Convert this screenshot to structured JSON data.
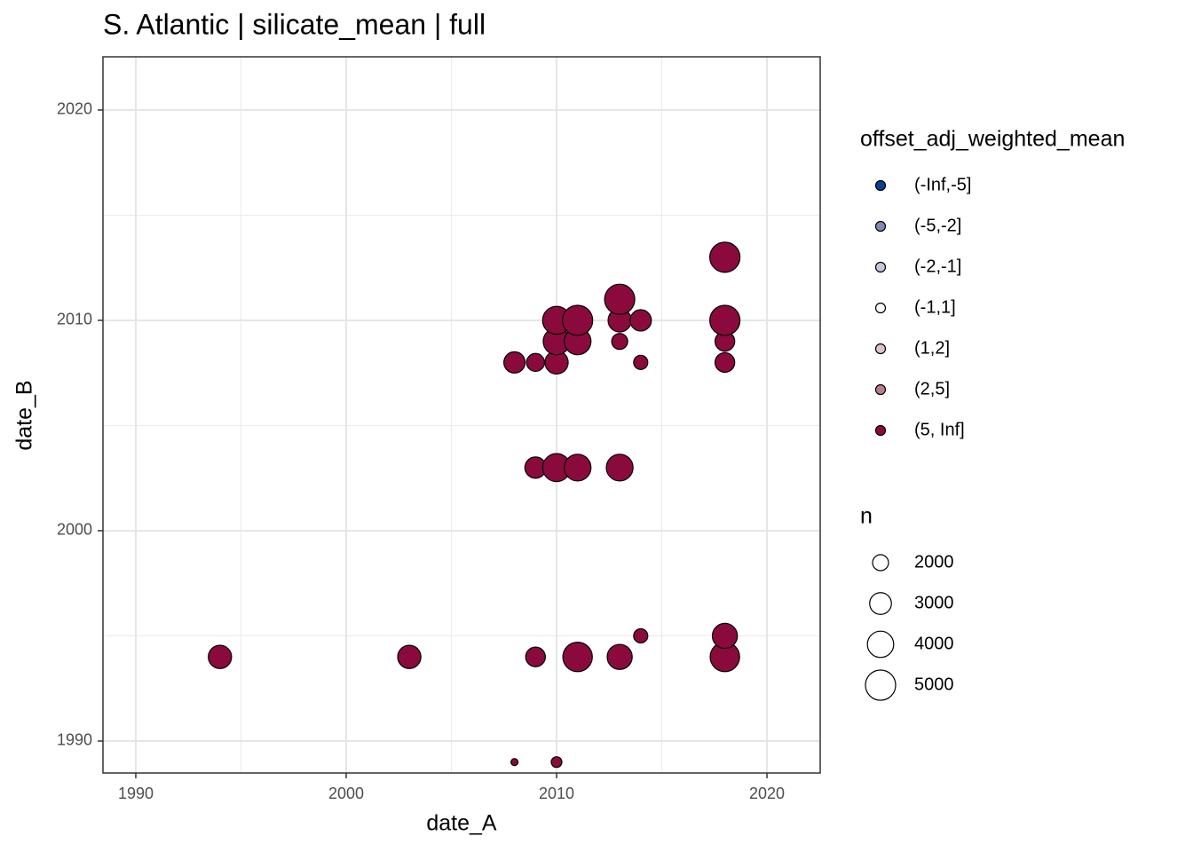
{
  "chart_data": {
    "type": "scatter",
    "title": "S. Atlantic | silicate_mean | full",
    "x_label": "date_A",
    "y_label": "date_B",
    "xlim": [
      1988.44,
      2022.53
    ],
    "ylim": [
      1988.48,
      2022.53
    ],
    "xticks": [
      1990,
      2000,
      2010,
      2020
    ],
    "yticks": [
      1990,
      2000,
      2010,
      2020
    ],
    "xminor": [
      1995,
      2005,
      2015
    ],
    "yminor": [
      1995,
      2005,
      2015
    ],
    "grid": true,
    "color": "#8b0a3d",
    "x": [
      1994,
      2003,
      2009,
      2011,
      2013,
      2018,
      2014,
      2018,
      2008,
      2010,
      2009,
      2010,
      2011,
      2013,
      2008,
      2009,
      2010,
      2014,
      2018,
      2010,
      2011,
      2013,
      2018,
      2010,
      2011,
      2013,
      2014,
      2013,
      2018,
      2018
    ],
    "y": [
      1994,
      1994,
      1994,
      1994,
      1994,
      1994,
      1995,
      1995,
      1989,
      1989,
      2003,
      2003,
      2003,
      2003,
      2008,
      2008,
      2008,
      2008,
      2008,
      2009,
      2009,
      2009,
      2009,
      2010,
      2010,
      2010,
      2010,
      2011,
      2010,
      2013
    ],
    "n": [
      3300,
      3300,
      2600,
      4800,
      3700,
      4800,
      1750,
      3700,
      1060,
      1350,
      2900,
      4400,
      4100,
      4100,
      2900,
      2300,
      3300,
      1750,
      2600,
      4100,
      4100,
      2000,
      2600,
      4400,
      5000,
      3300,
      2900,
      5000,
      5000,
      5000
    ],
    "legend": {
      "title": "offset_adj_weighted_mean",
      "items": [
        {
          "label": "(-Inf,-5]",
          "color": "#0b3d98"
        },
        {
          "label": "(-5,-2]",
          "color": "#8088b8"
        },
        {
          "label": "(-2,-1]",
          "color": "#c4c8dc"
        },
        {
          "label": "(-1,1]",
          "color": "#f7f7f7"
        },
        {
          "label": "(1,2]",
          "color": "#dec3c8"
        },
        {
          "label": "(2,5]",
          "color": "#b97c89"
        },
        {
          "label": "(5, Inf]",
          "color": "#8b0a3d"
        }
      ]
    },
    "size_legend": {
      "title": "n",
      "values": [
        2000,
        3000,
        4000,
        5000
      ]
    }
  }
}
